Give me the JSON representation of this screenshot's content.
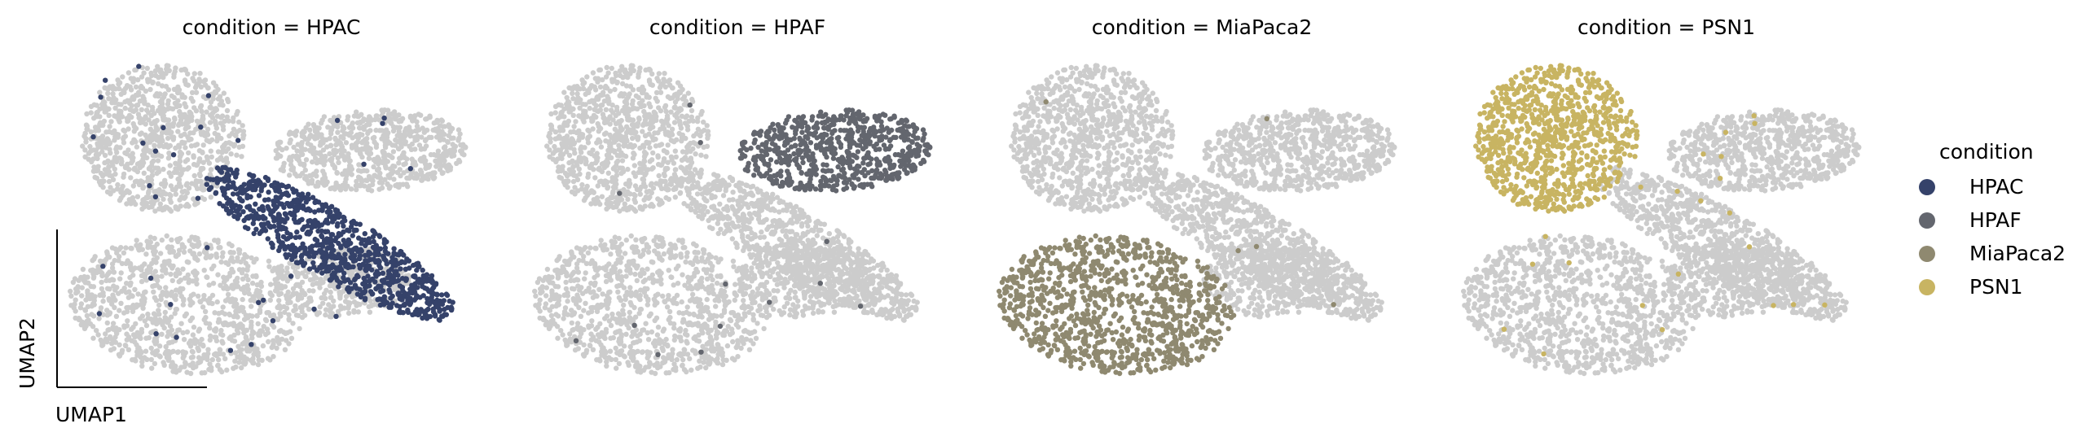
{
  "chart_data": {
    "type": "scatter",
    "xlabel": "UMAP1",
    "ylabel": "UMAP2",
    "background_color": "#cccccc",
    "panels": [
      {
        "title": "condition = HPAC",
        "highlight": "HPAC"
      },
      {
        "title": "condition = HPAF",
        "highlight": "HPAF"
      },
      {
        "title": "condition = MiaPaca2",
        "highlight": "MiaPaca2"
      },
      {
        "title": "condition = PSN1",
        "highlight": "PSN1"
      }
    ],
    "legend": {
      "title": "condition",
      "placement": "right",
      "entries": [
        {
          "label": "HPAC",
          "color": "#35426a"
        },
        {
          "label": "HPAF",
          "color": "#63666e"
        },
        {
          "label": "MiaPaca2",
          "color": "#8f8970"
        },
        {
          "label": "PSN1",
          "color": "#c8b462"
        }
      ]
    },
    "grid": false,
    "ticks": false
  }
}
